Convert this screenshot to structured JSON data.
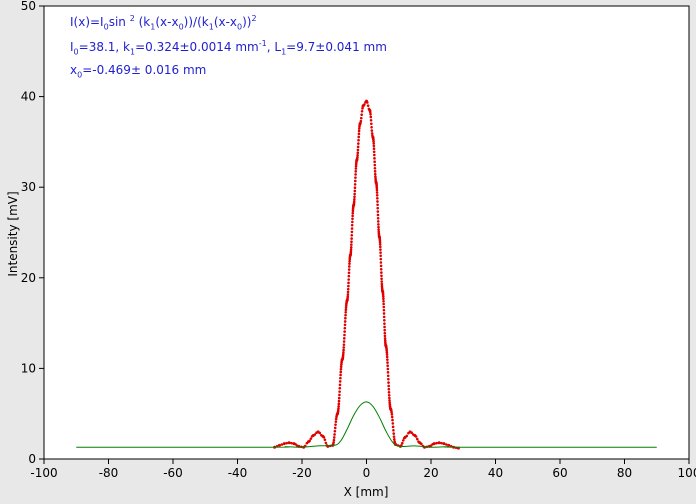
{
  "fit": {
    "line1": {
      "a": "I(x)=I",
      "b": "0",
      "c": "sin ",
      "d": "2",
      "e": " (k",
      "f": "1",
      "g": "(x-x",
      "h": "0",
      "i": "))/(k",
      "j": "1",
      "k": "(x-x",
      "l": "0",
      "m": "))",
      "n": "2"
    },
    "line2": {
      "a": "I",
      "b": "0",
      "c": "=38.1,  k",
      "d": "1",
      "e": "=0.324±0.0014 mm",
      "f": "-1",
      "g": ",  L",
      "h": "1",
      "i": "=9.7±0.041 mm"
    },
    "line3": {
      "a": "x",
      "b": "0",
      "c": "=-0.469±  0.016 mm"
    }
  },
  "chart_data": {
    "type": "scatter",
    "xlabel": "X [mm]",
    "ylabel": "Intensity [mV]",
    "xlim": [
      -100,
      100
    ],
    "ylim": [
      0,
      50
    ],
    "xticks": [
      -100,
      -80,
      -60,
      -40,
      -20,
      0,
      20,
      40,
      60,
      80,
      100
    ],
    "yticks": [
      0,
      10,
      20,
      30,
      40,
      50
    ],
    "series": [
      {
        "kind": "points",
        "color": "#e00000",
        "x": [
          -28.5,
          -27,
          -25.5,
          -24,
          -22.5,
          -21,
          -19.5,
          -18,
          -16.5,
          -15,
          -13.5,
          -12,
          -10.5,
          -9,
          -7.5,
          -6,
          -5,
          -4,
          -3,
          -2,
          -1,
          0,
          1,
          2,
          3,
          4,
          5,
          6,
          7.5,
          9,
          10.5,
          12,
          13.5,
          15,
          16.5,
          18,
          19.5,
          21,
          22.5,
          24,
          25.5,
          27,
          28.5
        ],
        "y": [
          1.3,
          1.5,
          1.7,
          1.8,
          1.7,
          1.4,
          1.3,
          1.9,
          2.6,
          3.0,
          2.5,
          1.4,
          1.5,
          5.0,
          11.0,
          17.5,
          22.5,
          28.0,
          33.0,
          37.0,
          39.0,
          39.5,
          38.5,
          35.5,
          30.5,
          24.5,
          18.5,
          12.5,
          5.5,
          1.6,
          1.4,
          2.4,
          3.0,
          2.6,
          1.8,
          1.3,
          1.4,
          1.7,
          1.8,
          1.7,
          1.5,
          1.3,
          1.2
        ]
      },
      {
        "kind": "line",
        "color": "#008000",
        "x": [
          -90,
          -30,
          -25,
          -20,
          -15,
          -10,
          -8,
          -6,
          -4,
          -2,
          0,
          2,
          4,
          6,
          8,
          10,
          15,
          20,
          25,
          30,
          90
        ],
        "y": [
          1.3,
          1.3,
          1.35,
          1.3,
          1.45,
          1.5,
          2.0,
          3.3,
          4.8,
          5.9,
          6.3,
          5.8,
          4.6,
          3.1,
          1.9,
          1.4,
          1.45,
          1.3,
          1.35,
          1.3,
          1.3
        ]
      }
    ]
  }
}
